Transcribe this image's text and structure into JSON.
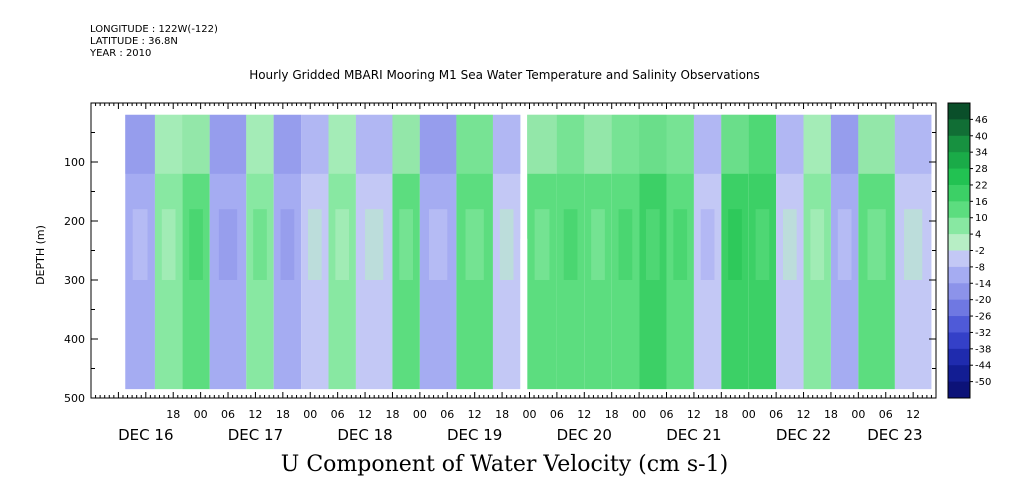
{
  "header": {
    "longitude": "LONGITUDE : 122W(-122)",
    "latitude": "LATITUDE : 36.8N",
    "year": "YEAR : 2010",
    "title": "Hourly Gridded MBARI Mooring M1 Sea Water Temperature and Salinity Observations"
  },
  "chart_data": {
    "type": "heatmap",
    "title": "U Component of Water Velocity (cm s-1)",
    "ylabel": "DEPTH (m)",
    "ylim": [
      500,
      0
    ],
    "yticks": [
      100,
      200,
      300,
      400,
      500
    ],
    "data_depth_range": [
      20,
      485
    ],
    "x_hour_ticks": [
      {
        "hour": 18,
        "label": "18"
      },
      {
        "hour": 24,
        "label": "00"
      },
      {
        "hour": 30,
        "label": "06"
      },
      {
        "hour": 36,
        "label": "12"
      },
      {
        "hour": 42,
        "label": "18"
      },
      {
        "hour": 48,
        "label": "00"
      },
      {
        "hour": 54,
        "label": "06"
      },
      {
        "hour": 60,
        "label": "12"
      },
      {
        "hour": 66,
        "label": "18"
      },
      {
        "hour": 72,
        "label": "00"
      },
      {
        "hour": 78,
        "label": "06"
      },
      {
        "hour": 84,
        "label": "12"
      },
      {
        "hour": 90,
        "label": "18"
      },
      {
        "hour": 96,
        "label": "00"
      },
      {
        "hour": 102,
        "label": "06"
      },
      {
        "hour": 108,
        "label": "12"
      },
      {
        "hour": 114,
        "label": "18"
      },
      {
        "hour": 120,
        "label": "00"
      },
      {
        "hour": 126,
        "label": "06"
      },
      {
        "hour": 132,
        "label": "12"
      },
      {
        "hour": 138,
        "label": "18"
      },
      {
        "hour": 144,
        "label": "00"
      },
      {
        "hour": 150,
        "label": "06"
      },
      {
        "hour": 156,
        "label": "12"
      },
      {
        "hour": 162,
        "label": "18"
      },
      {
        "hour": 168,
        "label": "00"
      },
      {
        "hour": 174,
        "label": "06"
      },
      {
        "hour": 180,
        "label": "12"
      }
    ],
    "day_labels": [
      {
        "hour": 12,
        "label": "DEC 16"
      },
      {
        "hour": 36,
        "label": "DEC 17"
      },
      {
        "hour": 60,
        "label": "DEC 18"
      },
      {
        "hour": 84,
        "label": "DEC 19"
      },
      {
        "hour": 108,
        "label": "DEC 20"
      },
      {
        "hour": 132,
        "label": "DEC 21"
      },
      {
        "hour": 156,
        "label": "DEC 22"
      },
      {
        "hour": 176,
        "label": "DEC 23"
      }
    ],
    "x_range_hours": [
      0,
      185
    ],
    "data_hour_range": [
      7.5,
      184
    ],
    "gap_hour_range": [
      94,
      95.5
    ],
    "gap_depth_range": [
      230,
      485
    ],
    "colorbar": {
      "levels": [
        "46",
        "40",
        "34",
        "28",
        "22",
        "16",
        "10",
        "4",
        "-2",
        "-8",
        "-14",
        "-20",
        "-26",
        "-32",
        "-38",
        "-44",
        "-50"
      ],
      "colors": [
        "#0a4f2a",
        "#116e35",
        "#179140",
        "#1aab48",
        "#22c252",
        "#3cd066",
        "#5cdd7f",
        "#88e8a2",
        "#b7eec5",
        "#c3c8f5",
        "#a5acf2",
        "#8c93ea",
        "#6f78e2",
        "#4f5ad8",
        "#3440c8",
        "#1f2bae",
        "#121d93",
        "#0c1278"
      ]
    },
    "field_bands": [
      {
        "hour_start": 7.5,
        "hour_end": 14,
        "value": -12
      },
      {
        "hour_start": 14,
        "hour_end": 20,
        "value": 6
      },
      {
        "hour_start": 20,
        "hour_end": 26,
        "value": 10
      },
      {
        "hour_start": 26,
        "hour_end": 34,
        "value": -10
      },
      {
        "hour_start": 34,
        "hour_end": 40,
        "value": 6
      },
      {
        "hour_start": 40,
        "hour_end": 46,
        "value": -12
      },
      {
        "hour_start": 46,
        "hour_end": 52,
        "value": -8
      },
      {
        "hour_start": 52,
        "hour_end": 58,
        "value": 8
      },
      {
        "hour_start": 58,
        "hour_end": 66,
        "value": -6
      },
      {
        "hour_start": 66,
        "hour_end": 72,
        "value": 10
      },
      {
        "hour_start": 72,
        "hour_end": 80,
        "value": -12
      },
      {
        "hour_start": 80,
        "hour_end": 88,
        "value": 12
      },
      {
        "hour_start": 88,
        "hour_end": 94,
        "value": -8
      },
      {
        "hour_start": 95.5,
        "hour_end": 102,
        "value": 10
      },
      {
        "hour_start": 102,
        "hour_end": 108,
        "value": 12
      },
      {
        "hour_start": 108,
        "hour_end": 114,
        "value": 10
      },
      {
        "hour_start": 114,
        "hour_end": 120,
        "value": 14
      },
      {
        "hour_start": 120,
        "hour_end": 126,
        "value": 16
      },
      {
        "hour_start": 126,
        "hour_end": 132,
        "value": 14
      },
      {
        "hour_start": 132,
        "hour_end": 138,
        "value": -6
      },
      {
        "hour_start": 138,
        "hour_end": 144,
        "value": 16
      },
      {
        "hour_start": 144,
        "hour_end": 150,
        "value": 18
      },
      {
        "hour_start": 150,
        "hour_end": 156,
        "value": -8
      },
      {
        "hour_start": 156,
        "hour_end": 162,
        "value": 8
      },
      {
        "hour_start": 162,
        "hour_end": 168,
        "value": -10
      },
      {
        "hour_start": 168,
        "hour_end": 176,
        "value": 10
      },
      {
        "hour_start": 176,
        "hour_end": 184,
        "value": -6
      }
    ]
  }
}
